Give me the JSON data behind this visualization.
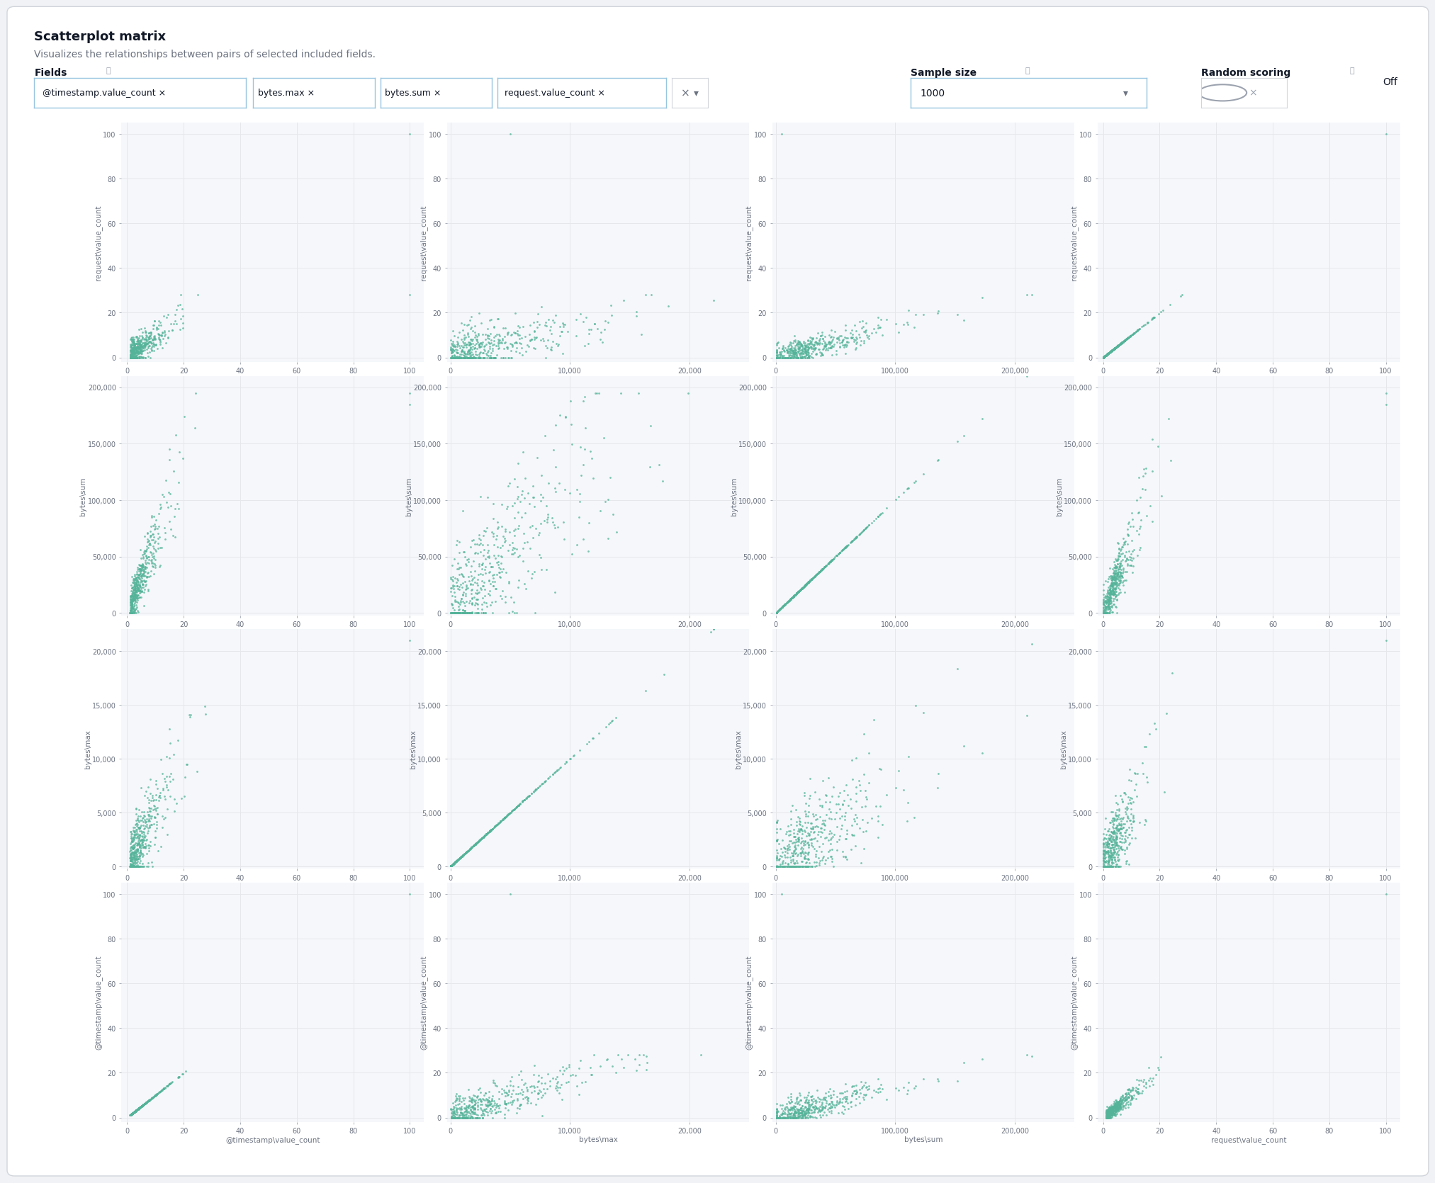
{
  "title": "Scatterplot matrix",
  "subtitle": "Visualizes the relationships between pairs of selected included fields.",
  "field_tags": [
    "@timestamp.value_count",
    "bytes.max",
    "bytes.sum",
    "request.value_count"
  ],
  "fields_display": [
    "@timestamp\\value_count",
    "bytes\\max",
    "bytes\\sum",
    "request\\value_count"
  ],
  "sample_size_value": "1000",
  "dot_color": "#54b399",
  "dot_alpha": 0.75,
  "dot_size": 4,
  "plot_bg": "#f5f7fa",
  "panel_bg": "#ffffff",
  "outer_bg": "#f0f2f5",
  "title_fontsize": 13,
  "subtitle_fontsize": 10,
  "axis_label_fontsize": 7.5,
  "tick_fontsize": 7,
  "seed": 42,
  "n_points": 500,
  "header_bg": "#ffffff",
  "tag_border": "#98c5e0",
  "tag_bg": "#ffffff",
  "tick_label_color": "#6b7280",
  "axis_label_color": "#6b7280",
  "grid_color": "#e5e7eb"
}
